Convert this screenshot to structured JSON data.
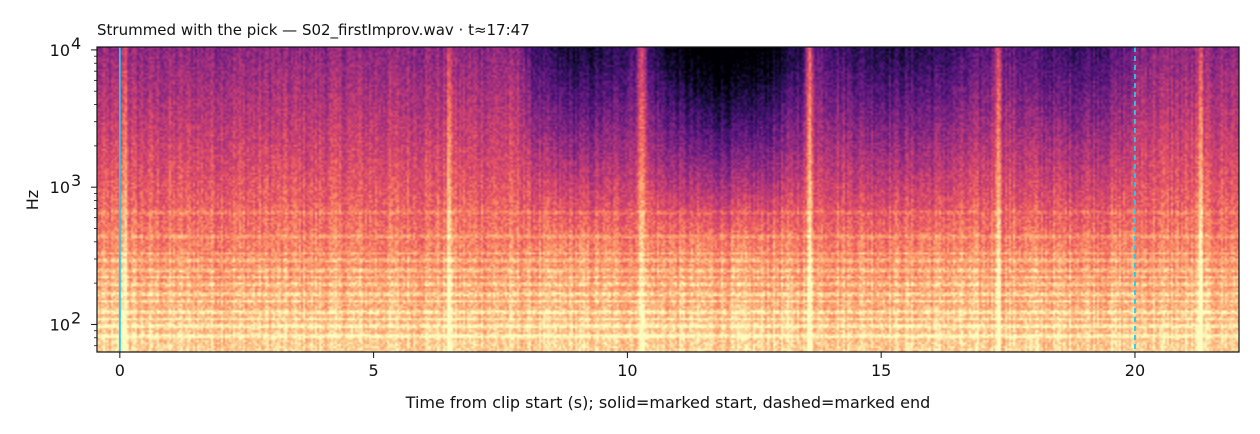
{
  "chart_data": {
    "type": "heatmap",
    "title": "Strummed with the pick  —  S02_firstImprov.wav · t≈17:47",
    "xlabel": "Time from clip start (s); solid=marked start, dashed=marked end",
    "ylabel": "Hz",
    "xlim": [
      -0.45,
      22.05
    ],
    "ylim": [
      63,
      10500
    ],
    "yscale": "log",
    "x_ticks": [
      {
        "value": 0,
        "label": "0"
      },
      {
        "value": 5,
        "label": "5"
      },
      {
        "value": 10,
        "label": "10"
      },
      {
        "value": 15,
        "label": "15"
      },
      {
        "value": 20,
        "label": "20"
      }
    ],
    "y_ticks": [
      {
        "value": 100,
        "base": "10",
        "exp": "2"
      },
      {
        "value": 1000,
        "base": "10",
        "exp": "3"
      },
      {
        "value": 10000,
        "base": "10",
        "exp": "4"
      }
    ],
    "colormap": "magma",
    "markers": [
      {
        "type": "start",
        "x": 0,
        "style": "solid",
        "color": "#22ccee"
      },
      {
        "type": "end",
        "x": 20,
        "style": "dashed",
        "color": "#22ccee"
      }
    ],
    "transients_s": [
      0.1,
      6.5,
      10.3,
      13.6,
      17.3,
      21.3
    ],
    "quiet_regions": [
      {
        "start": 8.0,
        "end": 10.2,
        "strength": 0.55
      },
      {
        "start": 10.4,
        "end": 13.5,
        "strength": 0.9
      },
      {
        "start": 13.7,
        "end": 17.2,
        "strength": 0.45
      },
      {
        "start": 17.4,
        "end": 20.0,
        "strength": 0.35
      }
    ],
    "harmonic_bands_hz": [
      82,
      98,
      110,
      123,
      147,
      165,
      196,
      220,
      247,
      294,
      330,
      440,
      660
    ]
  }
}
